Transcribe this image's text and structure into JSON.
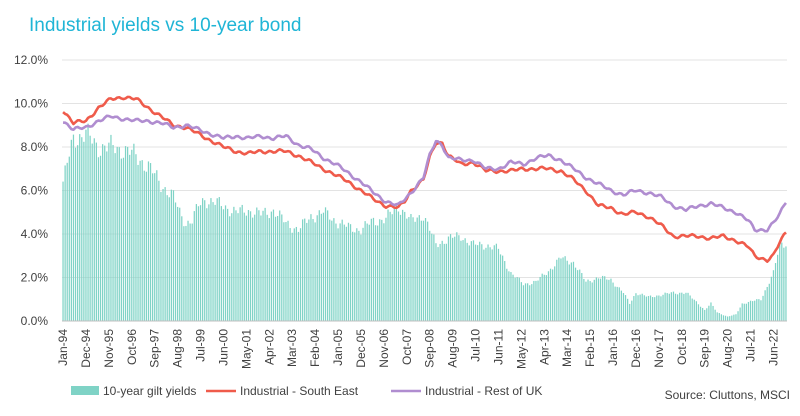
{
  "chart_data": {
    "type": "bar+line",
    "title": "Industrial yields vs 10-year bond",
    "source": "Source: Cluttons, MSCI",
    "y_axis": {
      "min": 0,
      "max": 12,
      "step": 2,
      "tick_labels": [
        "0.0%",
        "2.0%",
        "4.0%",
        "6.0%",
        "8.0%",
        "10.0%",
        "12.0%"
      ]
    },
    "x_axis": {
      "start": "Jan-94",
      "end": "Dec-22",
      "tick_labels": [
        "Jan-94",
        "Dec-94",
        "Nov-95",
        "Oct-96",
        "Sep-97",
        "Aug-98",
        "Jul-99",
        "Jun-00",
        "May-01",
        "Apr-02",
        "Mar-03",
        "Feb-04",
        "Jan-05",
        "Dec-05",
        "Nov-06",
        "Oct-07",
        "Sep-08",
        "Aug-09",
        "Jul-10",
        "Jun-11",
        "May-12",
        "Apr-13",
        "Mar-14",
        "Feb-15",
        "Jan-16",
        "Dec-16",
        "Nov-17",
        "Oct-18",
        "Sep-19",
        "Aug-20",
        "Jul-21",
        "Jun-22"
      ]
    },
    "grid": "horizontal",
    "legend": {
      "placement": "bottom"
    },
    "series": [
      {
        "name": "10-year gilt yields",
        "kind": "bar",
        "color": "#7fd3c6",
        "points": [
          [
            "Jan-94",
            6.3
          ],
          [
            "Mar-94",
            7.2
          ],
          [
            "Jun-94",
            8.4
          ],
          [
            "Dec-94",
            8.6
          ],
          [
            "Jun-95",
            8.0
          ],
          [
            "Dec-95",
            8.0
          ],
          [
            "Jun-96",
            7.9
          ],
          [
            "Dec-96",
            7.6
          ],
          [
            "Jun-97",
            7.1
          ],
          [
            "Dec-97",
            6.3
          ],
          [
            "Jun-98",
            5.7
          ],
          [
            "Sep-98",
            5.0
          ],
          [
            "Dec-98",
            4.5
          ],
          [
            "Mar-99",
            4.6
          ],
          [
            "Jun-99",
            5.3
          ],
          [
            "Sep-99",
            5.6
          ],
          [
            "Dec-99",
            5.5
          ],
          [
            "Jun-00",
            5.3
          ],
          [
            "Dec-00",
            5.0
          ],
          [
            "Jun-01",
            5.1
          ],
          [
            "Dec-01",
            4.9
          ],
          [
            "Jun-02",
            5.1
          ],
          [
            "Dec-02",
            4.5
          ],
          [
            "Jun-03",
            4.2
          ],
          [
            "Dec-03",
            4.8
          ],
          [
            "Jun-04",
            5.0
          ],
          [
            "Dec-04",
            4.6
          ],
          [
            "Jun-05",
            4.3
          ],
          [
            "Dec-05",
            4.2
          ],
          [
            "Jun-06",
            4.6
          ],
          [
            "Dec-06",
            4.7
          ],
          [
            "Jun-07",
            5.3
          ],
          [
            "Dec-07",
            4.6
          ],
          [
            "Jun-08",
            4.9
          ],
          [
            "Dec-08",
            3.5
          ],
          [
            "Jun-09",
            3.8
          ],
          [
            "Dec-09",
            3.9
          ],
          [
            "Jun-10",
            3.5
          ],
          [
            "Dec-10",
            3.5
          ],
          [
            "Jun-11",
            3.3
          ],
          [
            "Dec-11",
            2.2
          ],
          [
            "Jun-12",
            1.7
          ],
          [
            "Dec-12",
            1.8
          ],
          [
            "Jun-13",
            2.3
          ],
          [
            "Dec-13",
            2.9
          ],
          [
            "Jun-14",
            2.7
          ],
          [
            "Dec-14",
            1.8
          ],
          [
            "Jun-15",
            2.0
          ],
          [
            "Dec-15",
            1.9
          ],
          [
            "Jun-16",
            1.3
          ],
          [
            "Sep-16",
            0.8
          ],
          [
            "Dec-16",
            1.3
          ],
          [
            "Jun-17",
            1.1
          ],
          [
            "Dec-17",
            1.2
          ],
          [
            "Jun-18",
            1.3
          ],
          [
            "Dec-18",
            1.3
          ],
          [
            "Jun-19",
            0.8
          ],
          [
            "Sep-19",
            0.5
          ],
          [
            "Dec-19",
            0.8
          ],
          [
            "Mar-20",
            0.4
          ],
          [
            "Aug-20",
            0.2
          ],
          [
            "Dec-20",
            0.3
          ],
          [
            "Mar-21",
            0.8
          ],
          [
            "Dec-21",
            1.0
          ],
          [
            "Mar-22",
            1.6
          ],
          [
            "Jun-22",
            2.2
          ],
          [
            "Sep-22",
            3.5
          ],
          [
            "Dec-22",
            3.6
          ]
        ]
      },
      {
        "name": "Industrial - South East",
        "kind": "line",
        "color": "#ef5b4b",
        "points": [
          [
            "Jan-94",
            9.7
          ],
          [
            "Jun-94",
            9.1
          ],
          [
            "Dec-94",
            9.2
          ],
          [
            "Jun-95",
            9.8
          ],
          [
            "Dec-95",
            10.2
          ],
          [
            "Jun-96",
            10.3
          ],
          [
            "Dec-96",
            10.2
          ],
          [
            "Jun-97",
            9.8
          ],
          [
            "Dec-97",
            9.4
          ],
          [
            "Jun-98",
            9.0
          ],
          [
            "Dec-98",
            8.9
          ],
          [
            "Jun-99",
            8.6
          ],
          [
            "Dec-99",
            8.3
          ],
          [
            "Jun-00",
            8.0
          ],
          [
            "Dec-00",
            7.8
          ],
          [
            "Jun-01",
            7.7
          ],
          [
            "Dec-01",
            7.8
          ],
          [
            "Jun-02",
            7.8
          ],
          [
            "Dec-02",
            7.8
          ],
          [
            "Jun-03",
            7.6
          ],
          [
            "Dec-03",
            7.3
          ],
          [
            "Jun-04",
            7.0
          ],
          [
            "Dec-04",
            6.7
          ],
          [
            "Jun-05",
            6.4
          ],
          [
            "Dec-05",
            6.0
          ],
          [
            "Jun-06",
            5.6
          ],
          [
            "Dec-06",
            5.3
          ],
          [
            "Jun-07",
            5.2
          ],
          [
            "Sep-07",
            5.5
          ],
          [
            "Dec-07",
            6.0
          ],
          [
            "Jun-08",
            6.5
          ],
          [
            "Sep-08",
            7.5
          ],
          [
            "Dec-08",
            8.2
          ],
          [
            "Mar-09",
            8.2
          ],
          [
            "Jun-09",
            7.6
          ],
          [
            "Dec-09",
            7.2
          ],
          [
            "Jun-10",
            7.3
          ],
          [
            "Dec-10",
            6.9
          ],
          [
            "Jun-11",
            6.9
          ],
          [
            "Dec-11",
            6.9
          ],
          [
            "Jun-12",
            7.0
          ],
          [
            "Dec-12",
            7.0
          ],
          [
            "Jun-13",
            7.0
          ],
          [
            "Dec-13",
            6.9
          ],
          [
            "Jun-14",
            6.5
          ],
          [
            "Dec-14",
            6.0
          ],
          [
            "Jun-15",
            5.3
          ],
          [
            "Dec-15",
            5.2
          ],
          [
            "Jun-16",
            4.9
          ],
          [
            "Dec-16",
            5.0
          ],
          [
            "Jun-17",
            4.8
          ],
          [
            "Dec-17",
            4.4
          ],
          [
            "Jun-18",
            3.9
          ],
          [
            "Dec-18",
            3.9
          ],
          [
            "Jun-19",
            3.9
          ],
          [
            "Dec-19",
            3.8
          ],
          [
            "Jun-20",
            3.9
          ],
          [
            "Dec-20",
            3.7
          ],
          [
            "Jun-21",
            3.4
          ],
          [
            "Sep-21",
            3.0
          ],
          [
            "Mar-22",
            2.8
          ],
          [
            "Jun-22",
            3.0
          ],
          [
            "Sep-22",
            3.6
          ],
          [
            "Dec-22",
            4.1
          ]
        ]
      },
      {
        "name": "Industrial - Rest of UK",
        "kind": "line",
        "color": "#b08dd0",
        "points": [
          [
            "Jan-94",
            9.2
          ],
          [
            "Jun-94",
            8.8
          ],
          [
            "Dec-94",
            8.9
          ],
          [
            "Jun-95",
            9.2
          ],
          [
            "Dec-95",
            9.4
          ],
          [
            "Jun-96",
            9.3
          ],
          [
            "Dec-96",
            9.2
          ],
          [
            "Jun-97",
            9.2
          ],
          [
            "Dec-97",
            9.1
          ],
          [
            "Jun-98",
            8.9
          ],
          [
            "Dec-98",
            9.0
          ],
          [
            "Jun-99",
            8.8
          ],
          [
            "Dec-99",
            8.6
          ],
          [
            "Jun-00",
            8.4
          ],
          [
            "Dec-00",
            8.5
          ],
          [
            "Jun-01",
            8.4
          ],
          [
            "Dec-01",
            8.5
          ],
          [
            "Jun-02",
            8.4
          ],
          [
            "Dec-02",
            8.5
          ],
          [
            "Jun-03",
            8.1
          ],
          [
            "Dec-03",
            7.9
          ],
          [
            "Jun-04",
            7.5
          ],
          [
            "Dec-04",
            7.2
          ],
          [
            "Jun-05",
            6.8
          ],
          [
            "Dec-05",
            6.4
          ],
          [
            "Jun-06",
            5.9
          ],
          [
            "Dec-06",
            5.5
          ],
          [
            "Jun-07",
            5.3
          ],
          [
            "Sep-07",
            5.6
          ],
          [
            "Dec-07",
            5.9
          ],
          [
            "Jun-08",
            6.6
          ],
          [
            "Sep-08",
            7.6
          ],
          [
            "Dec-08",
            8.3
          ],
          [
            "Mar-09",
            8.1
          ],
          [
            "Jun-09",
            7.5
          ],
          [
            "Dec-09",
            7.4
          ],
          [
            "Jun-10",
            7.4
          ],
          [
            "Dec-10",
            7.0
          ],
          [
            "Jun-11",
            7.0
          ],
          [
            "Dec-11",
            7.3
          ],
          [
            "Jun-12",
            7.2
          ],
          [
            "Dec-12",
            7.5
          ],
          [
            "Jun-13",
            7.6
          ],
          [
            "Dec-13",
            7.4
          ],
          [
            "Jun-14",
            7.0
          ],
          [
            "Dec-14",
            6.6
          ],
          [
            "Jun-15",
            6.3
          ],
          [
            "Dec-15",
            6.0
          ],
          [
            "Jun-16",
            5.8
          ],
          [
            "Dec-16",
            6.0
          ],
          [
            "Jun-17",
            5.9
          ],
          [
            "Dec-17",
            5.7
          ],
          [
            "Jun-18",
            5.3
          ],
          [
            "Dec-18",
            5.1
          ],
          [
            "Jun-19",
            5.3
          ],
          [
            "Dec-19",
            5.4
          ],
          [
            "Jun-20",
            5.2
          ],
          [
            "Dec-20",
            5.0
          ],
          [
            "Jun-21",
            4.6
          ],
          [
            "Sep-21",
            4.2
          ],
          [
            "Mar-22",
            4.2
          ],
          [
            "Jun-22",
            4.5
          ],
          [
            "Sep-22",
            4.9
          ],
          [
            "Dec-22",
            5.5
          ]
        ]
      }
    ]
  },
  "colors": {
    "title": "#1fb5d6",
    "axis": "#bfbfbf",
    "grid": "#e3e3e3",
    "text": "#404040"
  }
}
